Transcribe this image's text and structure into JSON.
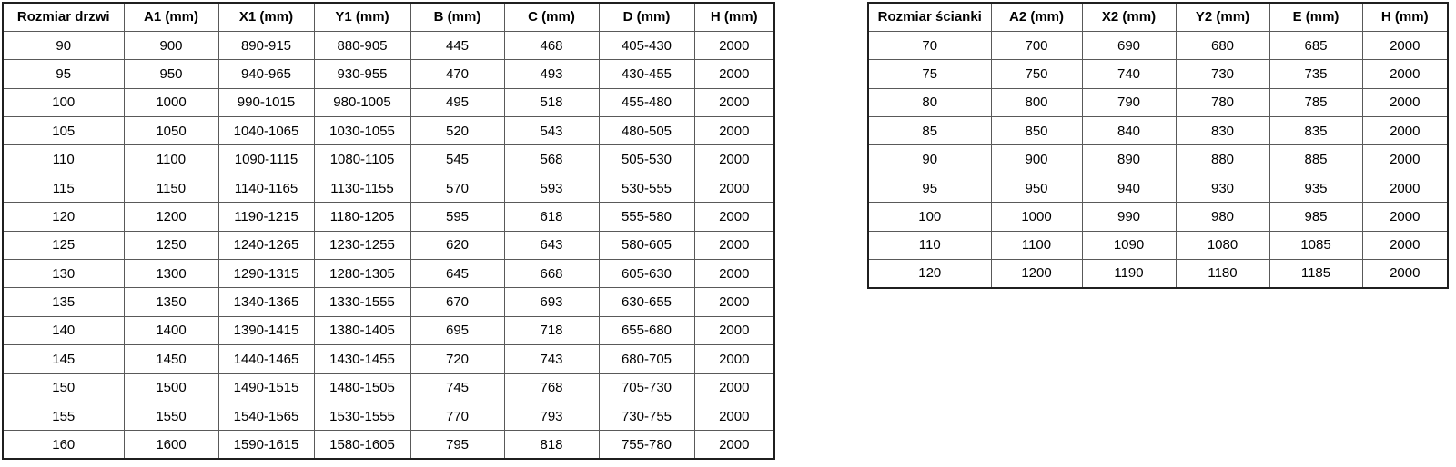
{
  "colors": {
    "background": "#ffffff",
    "text": "#000000",
    "border_inner": "#595959",
    "border_outer": "#1f1f1f"
  },
  "door_table": {
    "headers": [
      "Rozmiar drzwi",
      "A1 (mm)",
      "X1 (mm)",
      "Y1 (mm)",
      "B (mm)",
      "C (mm)",
      "D (mm)",
      "H (mm)"
    ],
    "rows": [
      [
        "90",
        "900",
        "890-915",
        "880-905",
        "445",
        "468",
        "405-430",
        "2000"
      ],
      [
        "95",
        "950",
        "940-965",
        "930-955",
        "470",
        "493",
        "430-455",
        "2000"
      ],
      [
        "100",
        "1000",
        "990-1015",
        "980-1005",
        "495",
        "518",
        "455-480",
        "2000"
      ],
      [
        "105",
        "1050",
        "1040-1065",
        "1030-1055",
        "520",
        "543",
        "480-505",
        "2000"
      ],
      [
        "110",
        "1100",
        "1090-1115",
        "1080-1105",
        "545",
        "568",
        "505-530",
        "2000"
      ],
      [
        "115",
        "1150",
        "1140-1165",
        "1130-1155",
        "570",
        "593",
        "530-555",
        "2000"
      ],
      [
        "120",
        "1200",
        "1190-1215",
        "1180-1205",
        "595",
        "618",
        "555-580",
        "2000"
      ],
      [
        "125",
        "1250",
        "1240-1265",
        "1230-1255",
        "620",
        "643",
        "580-605",
        "2000"
      ],
      [
        "130",
        "1300",
        "1290-1315",
        "1280-1305",
        "645",
        "668",
        "605-630",
        "2000"
      ],
      [
        "135",
        "1350",
        "1340-1365",
        "1330-1555",
        "670",
        "693",
        "630-655",
        "2000"
      ],
      [
        "140",
        "1400",
        "1390-1415",
        "1380-1405",
        "695",
        "718",
        "655-680",
        "2000"
      ],
      [
        "145",
        "1450",
        "1440-1465",
        "1430-1455",
        "720",
        "743",
        "680-705",
        "2000"
      ],
      [
        "150",
        "1500",
        "1490-1515",
        "1480-1505",
        "745",
        "768",
        "705-730",
        "2000"
      ],
      [
        "155",
        "1550",
        "1540-1565",
        "1530-1555",
        "770",
        "793",
        "730-755",
        "2000"
      ],
      [
        "160",
        "1600",
        "1590-1615",
        "1580-1605",
        "795",
        "818",
        "755-780",
        "2000"
      ]
    ]
  },
  "wall_table": {
    "headers": [
      "Rozmiar ścianki",
      "A2 (mm)",
      "X2 (mm)",
      "Y2 (mm)",
      "E (mm)",
      "H (mm)"
    ],
    "rows": [
      [
        "70",
        "700",
        "690",
        "680",
        "685",
        "2000"
      ],
      [
        "75",
        "750",
        "740",
        "730",
        "735",
        "2000"
      ],
      [
        "80",
        "800",
        "790",
        "780",
        "785",
        "2000"
      ],
      [
        "85",
        "850",
        "840",
        "830",
        "835",
        "2000"
      ],
      [
        "90",
        "900",
        "890",
        "880",
        "885",
        "2000"
      ],
      [
        "95",
        "950",
        "940",
        "930",
        "935",
        "2000"
      ],
      [
        "100",
        "1000",
        "990",
        "980",
        "985",
        "2000"
      ],
      [
        "110",
        "1100",
        "1090",
        "1080",
        "1085",
        "2000"
      ],
      [
        "120",
        "1200",
        "1190",
        "1180",
        "1185",
        "2000"
      ]
    ]
  }
}
